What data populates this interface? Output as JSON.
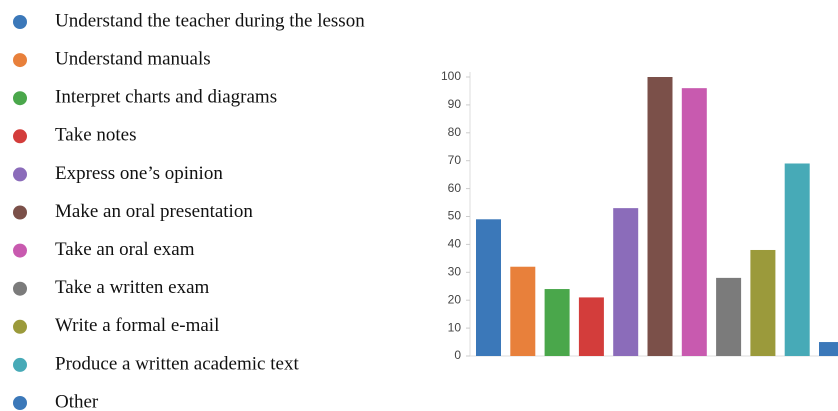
{
  "chart_data": {
    "type": "bar",
    "categories": [
      "Understand the teacher during the lesson",
      "Understand manuals",
      "Interpret charts and diagrams",
      "Take notes",
      "Express one’s opinion",
      "Make an oral presentation",
      "Take an oral exam",
      "Take a written exam",
      "Write a formal e-mail",
      "Produce a written academic text",
      "Other"
    ],
    "values": [
      49,
      32,
      24,
      21,
      53,
      100,
      96,
      28,
      38,
      69,
      5
    ],
    "colors": [
      "#3b78b9",
      "#e8803b",
      "#4aa74b",
      "#d33d3b",
      "#8b6cba",
      "#7b5049",
      "#c85aaf",
      "#7b7b7b",
      "#9b9a3b",
      "#47aab7",
      "#3b78b9"
    ],
    "ylim": [
      0,
      100
    ],
    "yticks": [
      0,
      10,
      20,
      30,
      40,
      50,
      60,
      70,
      80,
      90,
      100
    ],
    "legend": "left"
  }
}
